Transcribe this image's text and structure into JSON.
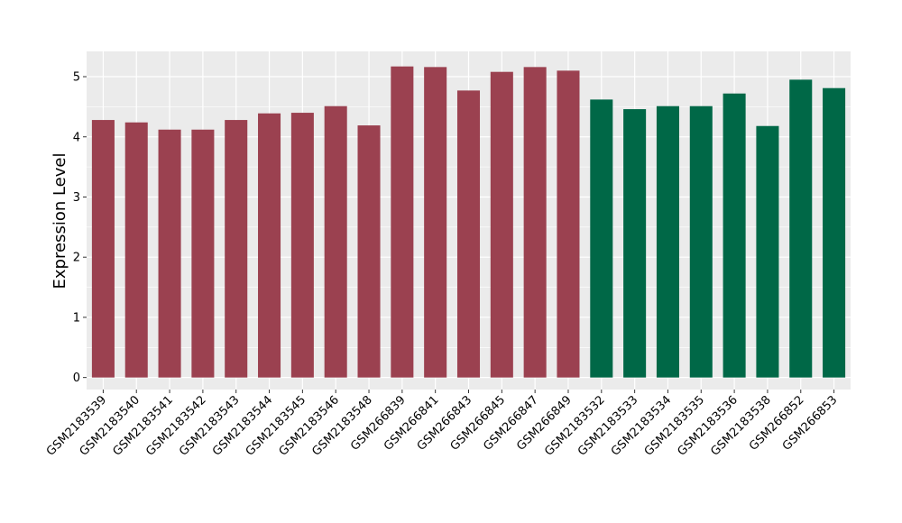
{
  "chart_data": {
    "type": "bar",
    "ylabel": "Expression Level",
    "xlabel": "",
    "ylim": [
      -0.2,
      5.42
    ],
    "yticks": [
      0,
      1,
      2,
      3,
      4,
      5
    ],
    "grid": true,
    "background": "#ebebeb",
    "categories": [
      "GSM2183539",
      "GSM2183540",
      "GSM2183541",
      "GSM2183542",
      "GSM2183543",
      "GSM2183544",
      "GSM2183545",
      "GSM2183546",
      "GSM2183548",
      "GSM266839",
      "GSM266841",
      "GSM266843",
      "GSM266845",
      "GSM266847",
      "GSM266849",
      "GSM2183532",
      "GSM2183533",
      "GSM2183534",
      "GSM2183535",
      "GSM2183536",
      "GSM2183538",
      "GSM266852",
      "GSM266853"
    ],
    "values": [
      4.28,
      4.24,
      4.12,
      4.12,
      4.28,
      4.39,
      4.4,
      4.51,
      4.19,
      5.17,
      5.16,
      4.77,
      5.08,
      5.16,
      5.1,
      4.62,
      4.46,
      4.51,
      4.51,
      4.72,
      4.18,
      4.95,
      4.81
    ],
    "colors": [
      "#9b4150",
      "#9b4150",
      "#9b4150",
      "#9b4150",
      "#9b4150",
      "#9b4150",
      "#9b4150",
      "#9b4150",
      "#9b4150",
      "#9b4150",
      "#9b4150",
      "#9b4150",
      "#9b4150",
      "#9b4150",
      "#9b4150",
      "#006847",
      "#006847",
      "#006847",
      "#006847",
      "#006847",
      "#006847",
      "#006847",
      "#006847"
    ]
  }
}
